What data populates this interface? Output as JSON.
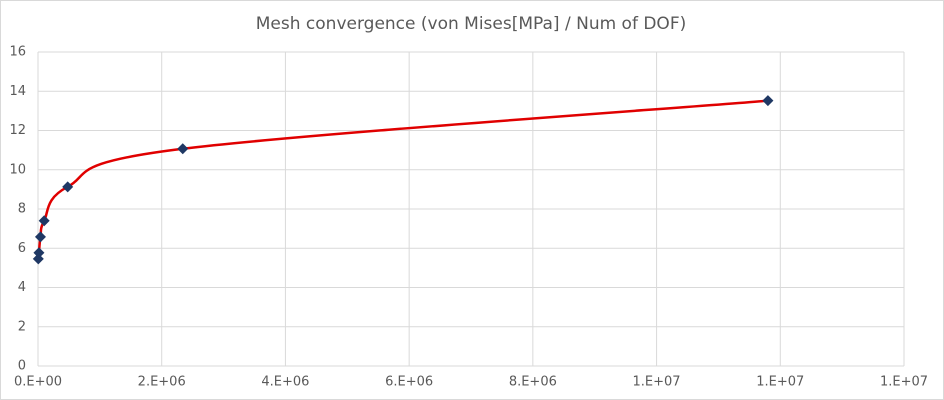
{
  "chart_data": {
    "type": "scatter",
    "title": "Mesh convergence (von Mises[MPa] / Num of DOF)",
    "x": [
      5000,
      15000,
      40000,
      100000,
      480000,
      2340000,
      11800000
    ],
    "y": [
      5.46,
      5.77,
      6.58,
      7.4,
      9.13,
      11.07,
      13.52
    ],
    "line_color": "#e00000",
    "marker_color": "#1f3864",
    "smooth": true,
    "grid": true,
    "xlim": [
      0,
      14000000
    ],
    "xticks": [
      {
        "value": 0,
        "label": "0.E+00"
      },
      {
        "value": 2000000,
        "label": "2.E+06"
      },
      {
        "value": 4000000,
        "label": "4.E+06"
      },
      {
        "value": 6000000,
        "label": "6.E+06"
      },
      {
        "value": 8000000,
        "label": "8.E+06"
      },
      {
        "value": 10000000,
        "label": "1.E+07"
      },
      {
        "value": 12000000,
        "label": "1.E+07"
      },
      {
        "value": 14000000,
        "label": "1.E+07"
      }
    ],
    "ylim": [
      0,
      16
    ],
    "yticks": [
      0,
      2,
      4,
      6,
      8,
      10,
      12,
      14,
      16
    ]
  }
}
